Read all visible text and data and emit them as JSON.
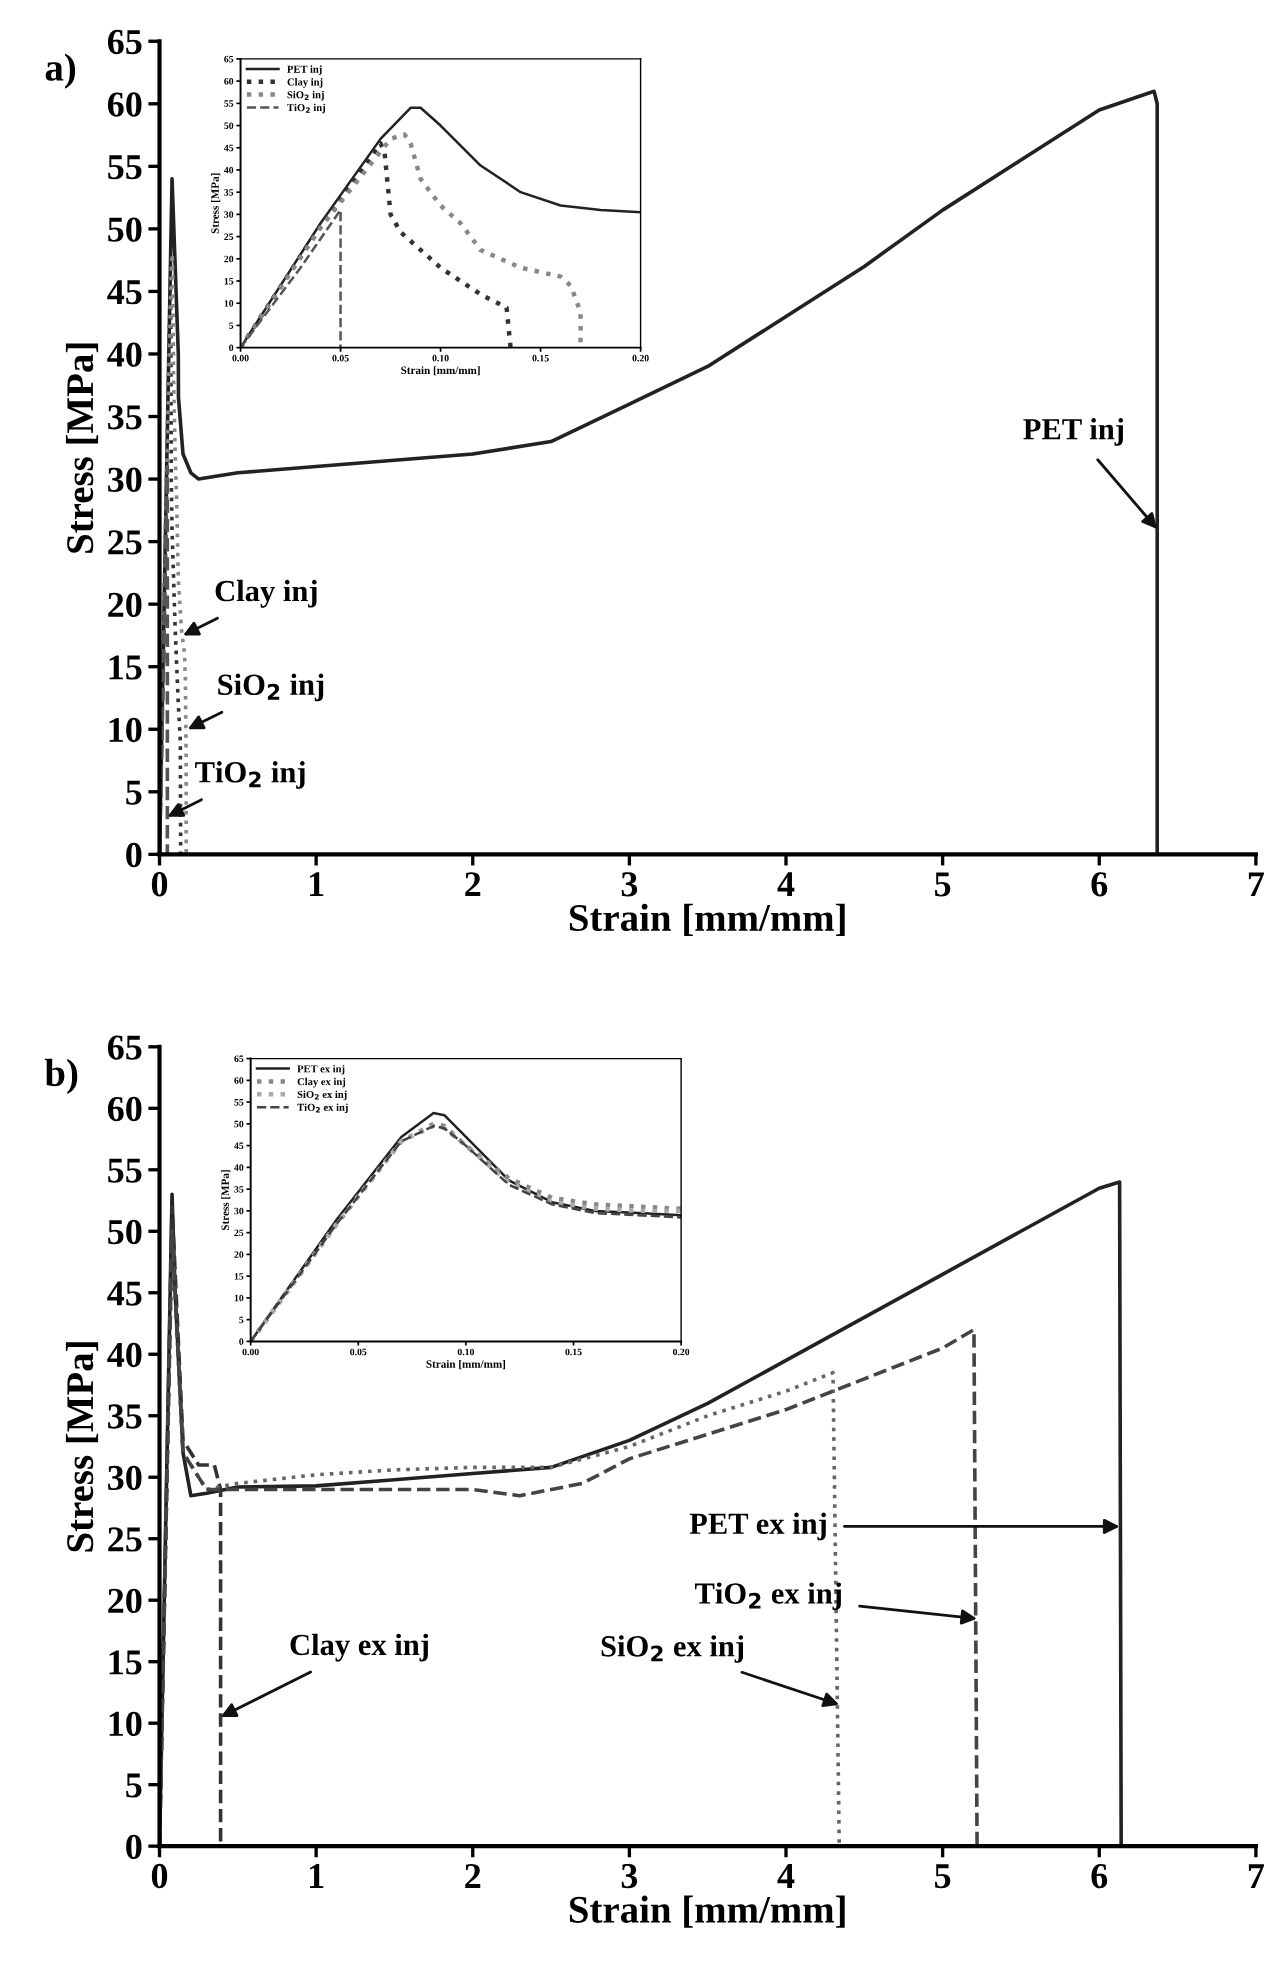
{
  "chart_data": [
    {
      "type": "line",
      "title": "a)",
      "xlabel": "Strain [mm/mm]",
      "ylabel": "Stress [MPa]",
      "xlim": [
        0,
        7
      ],
      "ylim": [
        0,
        65
      ],
      "xticks": [
        0,
        1,
        2,
        3,
        4,
        5,
        6,
        7
      ],
      "yticks": [
        0,
        5,
        10,
        15,
        20,
        25,
        30,
        35,
        40,
        45,
        50,
        55,
        60,
        65
      ],
      "grid": false,
      "legend": false,
      "series": [
        {
          "color": "#222222",
          "line_style": "solid",
          "x": [
            0,
            0.08,
            0.1,
            0.12,
            0.121,
            0.15,
            0.2,
            0.25,
            0.5,
            1,
            1.5,
            2,
            2.5,
            3,
            3.5,
            4,
            4.5,
            5,
            5.5,
            6,
            6.35,
            6.37,
            6.37
          ],
          "values": [
            0,
            54,
            47,
            40,
            36.5,
            32,
            30.5,
            30,
            30.5,
            31,
            31.5,
            32,
            33,
            36,
            39,
            43,
            47,
            51.5,
            55.5,
            59.5,
            61,
            60,
            0
          ]
        },
        {
          "color": "#333333",
          "line_style": "dotted",
          "x": [
            0,
            0.035,
            0.07,
            0.072,
            0.075,
            0.08,
            0.09,
            0.1,
            0.12,
            0.133,
            0.135
          ],
          "values": [
            0,
            24,
            46,
            44,
            30,
            26,
            22,
            18,
            12,
            9,
            0
          ]
        },
        {
          "color": "#888888",
          "line_style": "dotted",
          "x": [
            0,
            0.04,
            0.075,
            0.082,
            0.085,
            0.09,
            0.1,
            0.11,
            0.12,
            0.14,
            0.16,
            0.165,
            0.17,
            0.17
          ],
          "values": [
            0,
            27,
            47,
            48,
            46,
            38,
            32,
            28,
            22,
            18,
            16,
            14,
            8,
            0
          ]
        },
        {
          "color": "#555555",
          "line_style": "dashed",
          "x": [
            0,
            0.03,
            0.05,
            0.05
          ],
          "values": [
            0,
            18,
            31,
            0
          ]
        }
      ],
      "annotations": [
        {
          "text": "Clay inj",
          "x": 0.15,
          "y": 17.5
        },
        {
          "text": "SiO$_{2}$ inj",
          "x": 0.18,
          "y": 10
        },
        {
          "text": "TiO$_{2}$ inj",
          "x": 0.05,
          "y": 3
        },
        {
          "text": "PET inj",
          "x": 6.37,
          "y": 26
        }
      ]
    },
    {
      "type": "line",
      "xlabel": "Strain [mm/mm]",
      "ylabel": "Stress [MPa]",
      "xlim": [
        0,
        0.2
      ],
      "ylim": [
        0,
        65
      ],
      "xticks": [
        {
          "value": 0,
          "label": "0.00"
        },
        0.05,
        {
          "value": 0.1,
          "label": "0.10"
        },
        0.15,
        {
          "value": 0.2,
          "label": "0.20"
        }
      ],
      "yticks": [
        0,
        5,
        10,
        15,
        20,
        25,
        30,
        35,
        40,
        45,
        50,
        55,
        60,
        65
      ],
      "grid": false,
      "legend": "top left",
      "series": [
        {
          "name": "PET inj",
          "color": "#222222",
          "line_style": "solid",
          "x": [
            0,
            0.04,
            0.07,
            0.085,
            0.09,
            0.1,
            0.12,
            0.14,
            0.16,
            0.18,
            0.2
          ],
          "values": [
            0,
            28,
            47,
            54,
            54,
            50,
            41,
            35,
            32,
            31,
            30.5
          ]
        },
        {
          "name": "Clay inj",
          "color": "#333333",
          "line_style": "dotted",
          "x": [
            0,
            0.035,
            0.07,
            0.072,
            0.075,
            0.08,
            0.09,
            0.1,
            0.12,
            0.133,
            0.135
          ],
          "values": [
            0,
            24,
            46,
            44,
            30,
            26,
            22,
            18,
            12,
            9,
            0
          ]
        },
        {
          "name": "SiO$_{2}$ inj",
          "color": "#888888",
          "line_style": "dotted",
          "x": [
            0,
            0.04,
            0.075,
            0.082,
            0.085,
            0.09,
            0.1,
            0.11,
            0.12,
            0.14,
            0.16,
            0.165,
            0.17,
            0.17
          ],
          "values": [
            0,
            27,
            47,
            48,
            46,
            38,
            32,
            28,
            22,
            18,
            16,
            14,
            8,
            0
          ]
        },
        {
          "name": "TiO$_{2}$ inj",
          "color": "#555555",
          "line_style": "dashed",
          "x": [
            0,
            0.03,
            0.05,
            0.05
          ],
          "values": [
            0,
            18,
            31,
            0
          ]
        }
      ]
    },
    {
      "type": "line",
      "title": "b)",
      "xlabel": "Strain [mm/mm]",
      "ylabel": "Stress [MPa]",
      "xlim": [
        0,
        7
      ],
      "ylim": [
        0,
        65
      ],
      "xticks": [
        0,
        1,
        2,
        3,
        4,
        5,
        6,
        7
      ],
      "yticks": [
        0,
        5,
        10,
        15,
        20,
        25,
        30,
        35,
        40,
        45,
        50,
        55,
        60,
        65
      ],
      "grid": false,
      "legend": false,
      "series": [
        {
          "color": "#222222",
          "line_style": "solid",
          "x": [
            0,
            0.08,
            0.1,
            0.15,
            0.2,
            0.3,
            0.5,
            1,
            1.5,
            2,
            2.5,
            3,
            3.5,
            4,
            4.5,
            5,
            5.5,
            6,
            6.13,
            6.14
          ],
          "values": [
            0,
            53,
            45,
            32,
            28.5,
            28.7,
            29.2,
            29.3,
            29.8,
            30.3,
            30.8,
            33,
            36,
            39.5,
            43,
            46.5,
            50,
            53.5,
            54,
            0
          ]
        },
        {
          "color": "#333333",
          "line_style": "dashed",
          "x": [
            0,
            0.08,
            0.15,
            0.25,
            0.35,
            0.39,
            0.39
          ],
          "values": [
            0,
            52,
            33,
            31,
            31,
            29,
            0
          ]
        },
        {
          "color": "#666666",
          "line_style": "dotted",
          "x": [
            0,
            0.08,
            0.15,
            0.3,
            0.5,
            1,
            1.5,
            2,
            2.5,
            3,
            3.5,
            4,
            4.3,
            4.34
          ],
          "values": [
            0,
            50,
            32,
            29,
            29.5,
            30.2,
            30.6,
            30.8,
            30.8,
            32.5,
            35,
            37,
            38.5,
            0
          ]
        },
        {
          "color": "#444444",
          "line_style": "dashed",
          "x": [
            0,
            0.08,
            0.15,
            0.3,
            1,
            1.5,
            2,
            2.3,
            2.7,
            3,
            3.5,
            4,
            4.5,
            5,
            5.2,
            5.22
          ],
          "values": [
            0,
            50,
            32,
            29,
            29,
            29,
            29,
            28.5,
            29.5,
            31.5,
            33.5,
            35.5,
            38,
            40.5,
            42,
            0
          ]
        }
      ],
      "annotations": [
        {
          "text": "PET ex inj",
          "x": 6.13,
          "y": 26
        },
        {
          "text": "TiO$_{2}$ ex inj",
          "x": 5.22,
          "y": 18.5
        },
        {
          "text": "SiO$_{2}$ ex inj",
          "x": 4.34,
          "y": 11.5
        },
        {
          "text": "Clay ex inj",
          "x": 0.39,
          "y": 10.5
        }
      ]
    },
    {
      "type": "line",
      "xlabel": "Strain [mm/mm]",
      "ylabel": "Stress [MPa]",
      "xlim": [
        0,
        0.2
      ],
      "ylim": [
        0,
        65
      ],
      "xticks": [
        {
          "value": 0,
          "label": "0.00"
        },
        0.05,
        {
          "value": 0.1,
          "label": "0.10"
        },
        0.15,
        {
          "value": 0.2,
          "label": "0.20"
        }
      ],
      "yticks": [
        0,
        5,
        10,
        15,
        20,
        25,
        30,
        35,
        40,
        45,
        50,
        55,
        60,
        65
      ],
      "grid": false,
      "legend": "top left",
      "series": [
        {
          "name": "PET ex inj",
          "color": "#222222",
          "line_style": "solid",
          "x": [
            0,
            0.04,
            0.07,
            0.085,
            0.09,
            0.1,
            0.12,
            0.14,
            0.16,
            0.18,
            0.2
          ],
          "values": [
            0,
            28,
            47,
            52.5,
            52,
            47,
            37,
            32,
            30,
            29.5,
            29
          ]
        },
        {
          "name": "Clay ex inj",
          "color": "#888888",
          "line_style": "dotted",
          "x": [
            0,
            0.04,
            0.07,
            0.085,
            0.09,
            0.1,
            0.12,
            0.14,
            0.16,
            0.18,
            0.2
          ],
          "values": [
            0,
            27,
            46,
            50,
            49.5,
            45,
            37.5,
            33,
            31.5,
            31,
            30.5
          ]
        },
        {
          "name": "SiO$_{2}$ ex inj",
          "color": "#aaaaaa",
          "line_style": "dotted",
          "x": [
            0,
            0.04,
            0.07,
            0.085,
            0.09,
            0.1,
            0.12,
            0.14,
            0.16,
            0.18,
            0.2
          ],
          "values": [
            0,
            27,
            46,
            49.5,
            49,
            45,
            36.5,
            32,
            30.5,
            30,
            30
          ]
        },
        {
          "name": "TiO$_{2}$ ex inj",
          "color": "#444444",
          "line_style": "dashed",
          "x": [
            0,
            0.04,
            0.07,
            0.085,
            0.09,
            0.1,
            0.12,
            0.14,
            0.16,
            0.18,
            0.2
          ],
          "values": [
            0,
            27,
            46,
            49.5,
            49,
            45,
            36,
            31.5,
            29.5,
            29,
            28.5
          ]
        }
      ]
    }
  ]
}
